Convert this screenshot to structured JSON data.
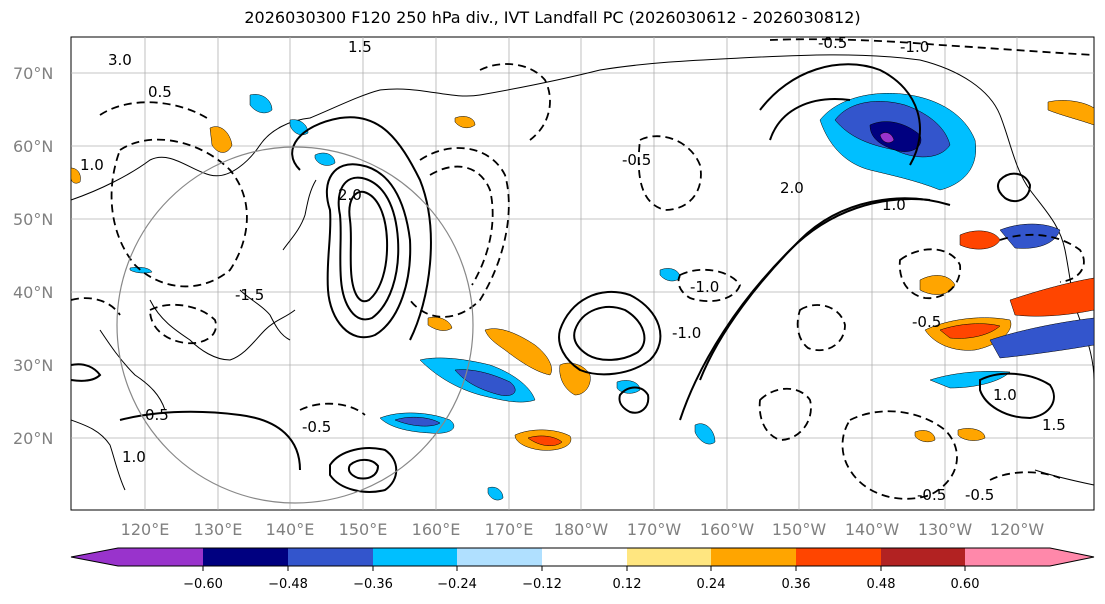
{
  "title": "2026030300 F120 250 hPa div., IVT Landfall PC (2026030612 - 2026030812)",
  "map": {
    "lat_labels": [
      "70°N",
      "60°N",
      "50°N",
      "40°N",
      "30°N",
      "20°N"
    ],
    "lon_labels": [
      "120°E",
      "130°E",
      "140°E",
      "150°E",
      "160°E",
      "170°E",
      "180°W",
      "170°W",
      "160°W",
      "150°W",
      "140°W",
      "130°W",
      "120°W"
    ],
    "contour_labels": [
      "3.0",
      "1.5",
      "2.0",
      "0.5",
      "1.0",
      "-0.5",
      "-1.0",
      "-1.5",
      "-0.5",
      "0.5",
      "1.0",
      "-0.5",
      "-1.0",
      "2.0",
      "1.0",
      "-1.0",
      "-0.5",
      "-0.5",
      "1.0",
      "1.5",
      "-0.5"
    ],
    "line_color": "#000000",
    "grid_color": "#b0b0b0",
    "land_color": "#ffffff"
  },
  "colorbar": {
    "tick_labels": [
      "−0.60",
      "−0.48",
      "−0.36",
      "−0.24",
      "−0.12",
      "0.12",
      "0.24",
      "0.36",
      "0.48",
      "0.60"
    ],
    "colors": [
      "#9933cc",
      "#000080",
      "#3355cc",
      "#00bfff",
      "#b0e0ff",
      "#ffffff",
      "#ffe680",
      "#ffa500",
      "#ff4500",
      "#b22222",
      "#ff88aa"
    ]
  }
}
